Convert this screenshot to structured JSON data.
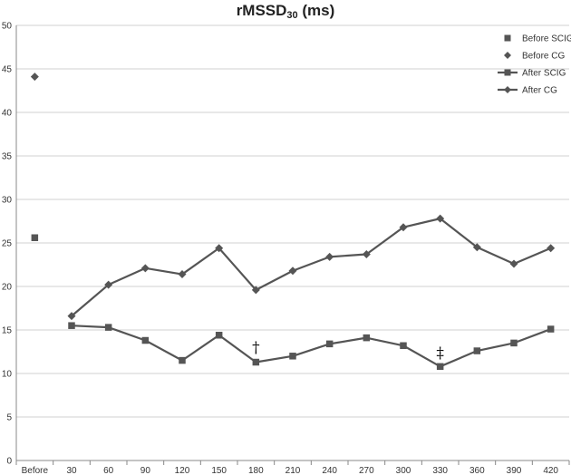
{
  "chart_data": {
    "type": "line",
    "title_main": "rMSSD",
    "title_sub": "30",
    "title_unit": " (ms)",
    "categories": [
      "Before",
      "30",
      "60",
      "90",
      "120",
      "150",
      "180",
      "210",
      "240",
      "270",
      "300",
      "330",
      "360",
      "390",
      "420"
    ],
    "ylim": [
      0,
      50
    ],
    "yticks": [
      "0",
      "5",
      "10",
      "15",
      "20",
      "25",
      "30",
      "35",
      "40",
      "45",
      "50"
    ],
    "grid": "horizontal",
    "legend_position": "top-right",
    "color": "#555555",
    "series": [
      {
        "name": "Before SCIG",
        "marker": "square",
        "line": false,
        "values": [
          25.6,
          null,
          null,
          null,
          null,
          null,
          null,
          null,
          null,
          null,
          null,
          null,
          null,
          null,
          null
        ]
      },
      {
        "name": "Before CG",
        "marker": "diamond",
        "line": false,
        "values": [
          44.1,
          null,
          null,
          null,
          null,
          null,
          null,
          null,
          null,
          null,
          null,
          null,
          null,
          null,
          null
        ]
      },
      {
        "name": "After SCIG",
        "marker": "square",
        "line": true,
        "values": [
          null,
          15.5,
          15.3,
          13.8,
          11.5,
          14.4,
          11.3,
          12.0,
          13.4,
          14.1,
          13.2,
          10.8,
          12.6,
          13.5,
          15.1
        ]
      },
      {
        "name": "After CG",
        "marker": "diamond",
        "line": true,
        "values": [
          null,
          16.6,
          20.2,
          22.1,
          21.4,
          24.4,
          19.6,
          21.8,
          23.4,
          23.7,
          26.8,
          27.8,
          24.5,
          22.6,
          24.4
        ]
      }
    ],
    "annotations": [
      {
        "text": "†",
        "category": "180",
        "y": 13.0
      },
      {
        "text": "‡",
        "category": "330",
        "y": 12.4
      }
    ]
  }
}
